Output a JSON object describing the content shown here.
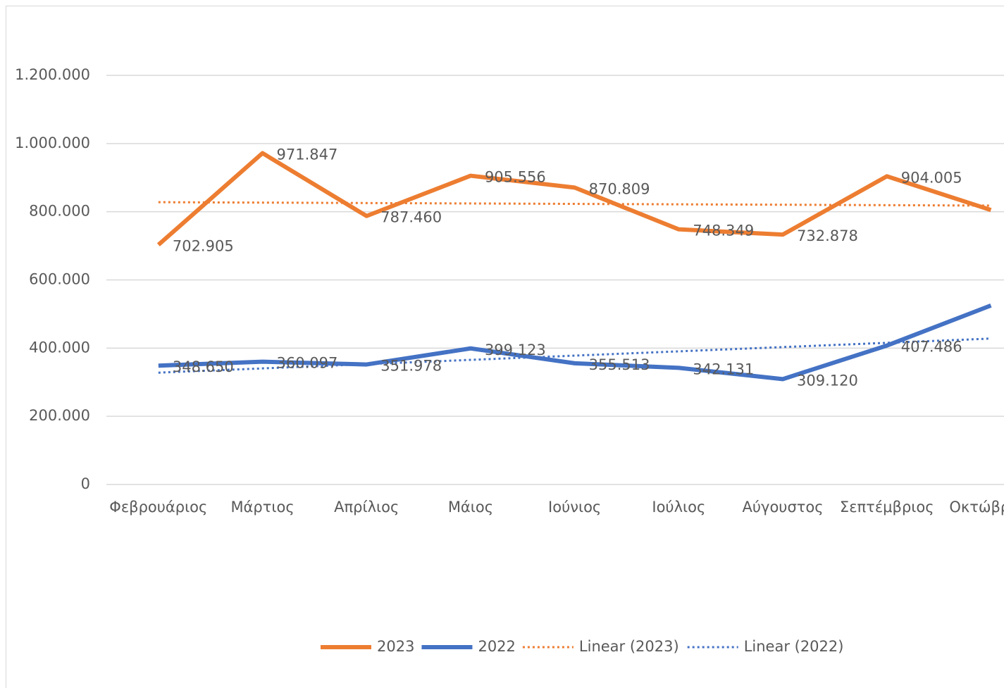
{
  "chart_data": {
    "type": "line",
    "categories": [
      "Φεβρουάριος",
      "Μάρτιος",
      "Απρίλιος",
      "Μάιος",
      "Ιούνιος",
      "Ιούλιος",
      "Αύγουστος",
      "Σεπτέμβριος",
      "Οκτώβριος"
    ],
    "series": [
      {
        "name": "2023",
        "color": "#ed7d31",
        "values": [
          702905,
          971847,
          787460,
          905556,
          870809,
          748349,
          732878,
          904005,
          805000
        ],
        "value_labels": [
          "702.905",
          "971.847",
          "787.460",
          "905.556",
          "870.809",
          "748.349",
          "732.878",
          "904.005",
          null
        ]
      },
      {
        "name": "2022",
        "color": "#4472c4",
        "values": [
          348650,
          360097,
          351978,
          399123,
          355513,
          342131,
          309120,
          407486,
          525000
        ],
        "value_labels": [
          "348.650",
          "360.097",
          "351.978",
          "399.123",
          "355.513",
          "342.131",
          "309.120",
          "407.486",
          null
        ]
      }
    ],
    "trendlines": [
      {
        "name": "Linear (2023)",
        "color": "#ed7d31",
        "values": [
          828000,
          818000
        ]
      },
      {
        "name": "Linear (2022)",
        "color": "#4472c4",
        "values": [
          328000,
          428000
        ]
      }
    ],
    "ylim": [
      0,
      1200000
    ],
    "yticks": [
      0,
      {
        "value": 200000,
        "label": "200.000"
      },
      {
        "value": 400000,
        "label": "400.000"
      },
      {
        "value": 600000,
        "label": "600.000"
      },
      {
        "value": 800000,
        "label": "800.000"
      },
      {
        "value": 1000000,
        "label": "1.000.000"
      },
      {
        "value": 1200000,
        "label": "1.200.000"
      }
    ],
    "grid": true,
    "legend": "bottom"
  }
}
